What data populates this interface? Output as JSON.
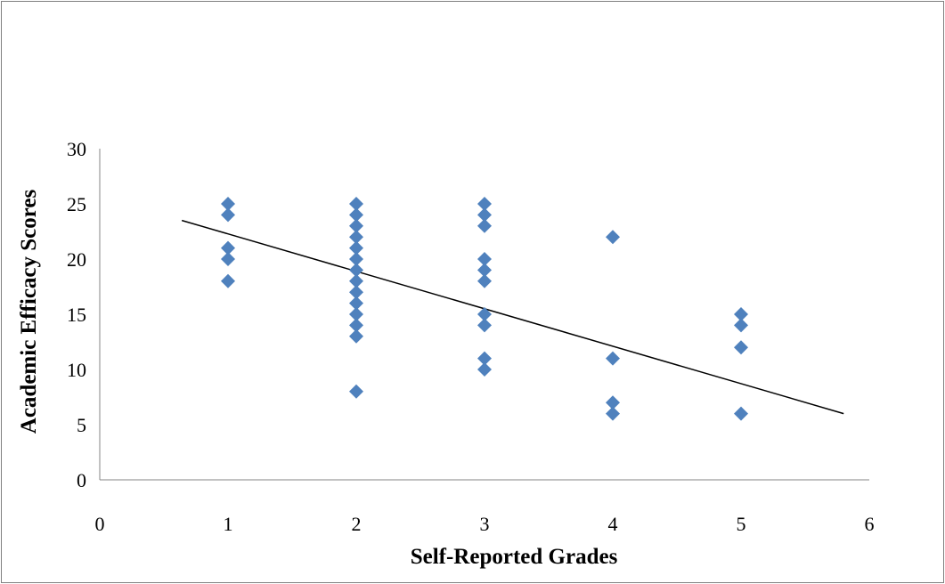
{
  "chart_data": {
    "type": "scatter",
    "title": "",
    "xlabel": "Self-Reported Grades",
    "ylabel": "Academic Efficacy Scores",
    "xlim": [
      0,
      6
    ],
    "ylim": [
      0,
      30
    ],
    "x_ticks": [
      0,
      1,
      2,
      3,
      4,
      5,
      6
    ],
    "y_ticks": [
      0,
      5,
      10,
      15,
      20,
      25,
      30
    ],
    "grid": false,
    "legend": "none",
    "marker": "diamond",
    "marker_color": "#4f81bd",
    "trendline_color": "#000000",
    "series": [
      {
        "points": [
          [
            1,
            25
          ],
          [
            1,
            24
          ],
          [
            1,
            21
          ],
          [
            1,
            20
          ],
          [
            1,
            18
          ],
          [
            2,
            25
          ],
          [
            2,
            24
          ],
          [
            2,
            23
          ],
          [
            2,
            22
          ],
          [
            2,
            21
          ],
          [
            2,
            20
          ],
          [
            2,
            19
          ],
          [
            2,
            18
          ],
          [
            2,
            17
          ],
          [
            2,
            16
          ],
          [
            2,
            15
          ],
          [
            2,
            14
          ],
          [
            2,
            13
          ],
          [
            2,
            8
          ],
          [
            3,
            25
          ],
          [
            3,
            24
          ],
          [
            3,
            23
          ],
          [
            3,
            20
          ],
          [
            3,
            19
          ],
          [
            3,
            18
          ],
          [
            3,
            15
          ],
          [
            3,
            14
          ],
          [
            3,
            11
          ],
          [
            3,
            10
          ],
          [
            4,
            22
          ],
          [
            4,
            11
          ],
          [
            4,
            7
          ],
          [
            4,
            6
          ],
          [
            5,
            15
          ],
          [
            5,
            14
          ],
          [
            5,
            12
          ],
          [
            5,
            6
          ]
        ]
      }
    ],
    "trendline": {
      "x": [
        0.64,
        5.8
      ],
      "y": [
        23.5,
        6.0
      ]
    }
  }
}
